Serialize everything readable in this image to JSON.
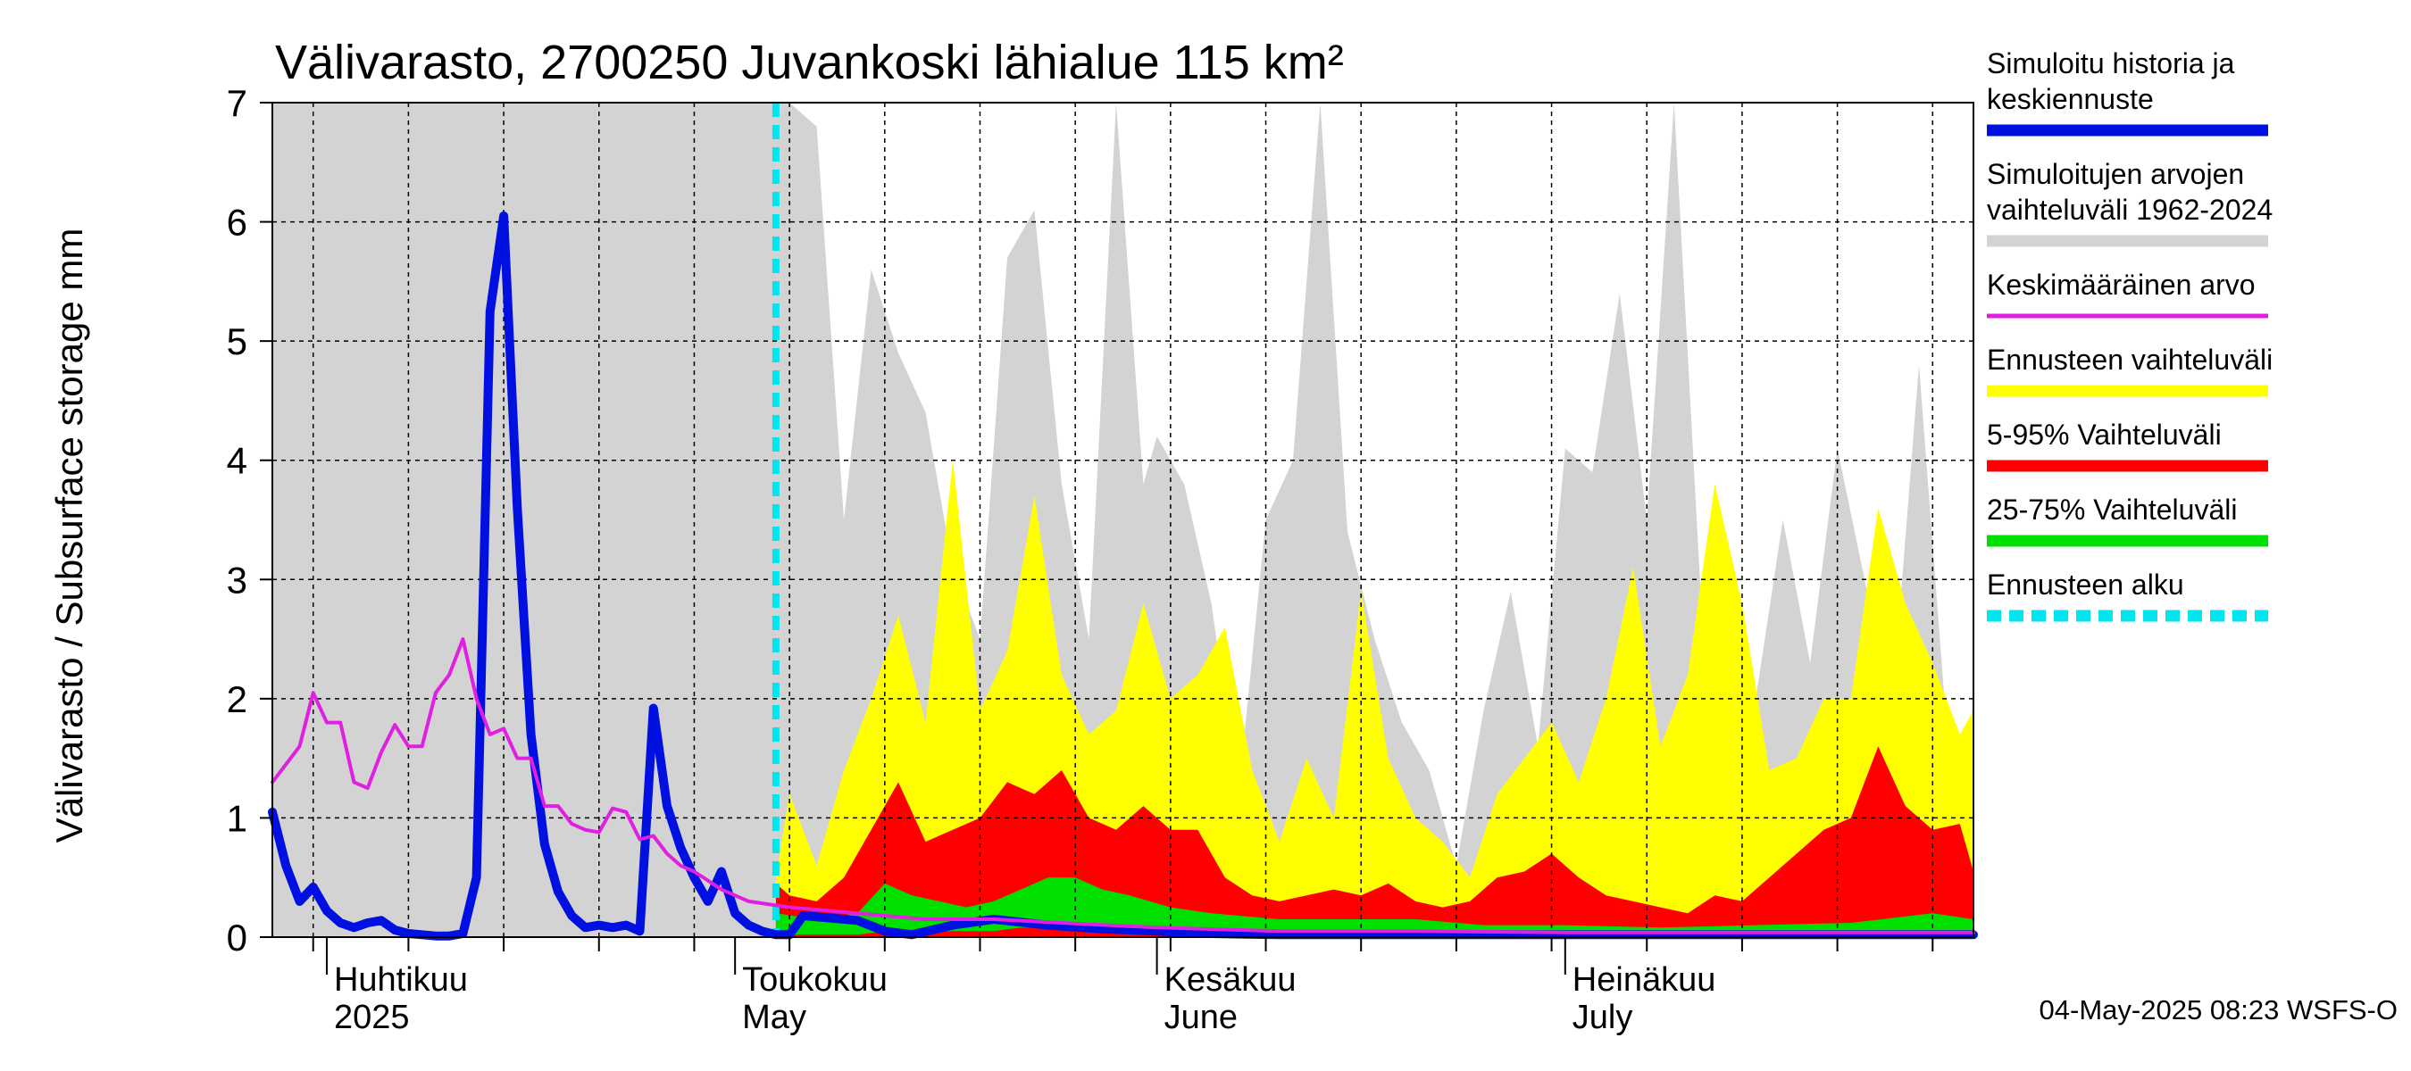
{
  "chart_data": {
    "type": "area",
    "title": "Välivarasto, 2700250 Juvankoski lähialue 115 km²",
    "ylabel": "Välivarasto / Subsurface storage  mm",
    "ylim": [
      0,
      7
    ],
    "yticks": [
      0,
      1,
      2,
      3,
      4,
      5,
      6,
      7
    ],
    "xlim": [
      "2025-03-28",
      "2025-07-31"
    ],
    "forecast_start": "2025-05-04",
    "months": [
      {
        "date": "2025-04-01",
        "fi": "Huhtikuu",
        "en": "2025"
      },
      {
        "date": "2025-05-01",
        "fi": "Toukokuu",
        "en": "May"
      },
      {
        "date": "2025-06-01",
        "fi": "Kesäkuu",
        "en": "June"
      },
      {
        "date": "2025-07-01",
        "fi": "Heinäkuu",
        "en": "July"
      }
    ],
    "grid": true,
    "legend_position": "right",
    "legend": [
      {
        "label": "Simuloitu historia ja keskiennuste",
        "color": "#0010e0",
        "style": "thick"
      },
      {
        "label": "Simuloitujen arvojen vaihteluväli 1962-2024",
        "color": "#d3d3d3",
        "style": "thick"
      },
      {
        "label": "Keskimääräinen arvo",
        "color": "#e020e0",
        "style": "thin"
      },
      {
        "label": "Ennusteen vaihteluväli",
        "color": "#ffff00",
        "style": "thick"
      },
      {
        "label": "5-95% Vaihteluväli",
        "color": "#ff0000",
        "style": "thick"
      },
      {
        "label": "25-75% Vaihteluväli",
        "color": "#00e000",
        "style": "thick"
      },
      {
        "label": "Ennusteen alku",
        "color": "#00e5ee",
        "style": "dashed"
      }
    ],
    "series": [
      {
        "name": "Simuloitu historia ja keskiennuste",
        "kind": "line",
        "color": "#0010e0",
        "x": [
          "2025-03-28",
          "2025-03-29",
          "2025-03-30",
          "2025-03-31",
          "2025-04-01",
          "2025-04-02",
          "2025-04-03",
          "2025-04-04",
          "2025-04-05",
          "2025-04-06",
          "2025-04-07",
          "2025-04-08",
          "2025-04-09",
          "2025-04-10",
          "2025-04-11",
          "2025-04-12",
          "2025-04-13",
          "2025-04-14",
          "2025-04-15",
          "2025-04-16",
          "2025-04-17",
          "2025-04-18",
          "2025-04-19",
          "2025-04-20",
          "2025-04-21",
          "2025-04-22",
          "2025-04-23",
          "2025-04-24",
          "2025-04-25",
          "2025-04-26",
          "2025-04-27",
          "2025-04-28",
          "2025-04-29",
          "2025-04-30",
          "2025-05-01",
          "2025-05-02",
          "2025-05-03",
          "2025-05-04",
          "2025-05-05",
          "2025-05-06",
          "2025-05-08",
          "2025-05-10",
          "2025-05-12",
          "2025-05-14",
          "2025-05-17",
          "2025-05-20",
          "2025-05-24",
          "2025-05-28",
          "2025-06-01",
          "2025-06-05",
          "2025-06-10",
          "2025-06-20",
          "2025-06-30",
          "2025-07-10",
          "2025-07-20",
          "2025-07-31"
        ],
        "y": [
          1.05,
          0.6,
          0.3,
          0.42,
          0.22,
          0.12,
          0.08,
          0.12,
          0.14,
          0.06,
          0.03,
          0.02,
          0.01,
          0.01,
          0.03,
          0.5,
          5.25,
          6.05,
          3.6,
          1.7,
          0.78,
          0.38,
          0.18,
          0.08,
          0.1,
          0.08,
          0.1,
          0.05,
          1.92,
          1.1,
          0.75,
          0.5,
          0.3,
          0.55,
          0.2,
          0.1,
          0.05,
          0.02,
          0.02,
          0.18,
          0.16,
          0.14,
          0.05,
          0.02,
          0.1,
          0.15,
          0.1,
          0.07,
          0.05,
          0.03,
          0.02,
          0.02,
          0.02,
          0.02,
          0.02,
          0.02
        ]
      },
      {
        "name": "Keskimääräinen arvo",
        "kind": "line",
        "color": "#e020e0",
        "x": [
          "2025-03-28",
          "2025-03-30",
          "2025-03-31",
          "2025-04-01",
          "2025-04-02",
          "2025-04-03",
          "2025-04-04",
          "2025-04-05",
          "2025-04-06",
          "2025-04-07",
          "2025-04-08",
          "2025-04-09",
          "2025-04-10",
          "2025-04-11",
          "2025-04-12",
          "2025-04-13",
          "2025-04-14",
          "2025-04-15",
          "2025-04-16",
          "2025-04-17",
          "2025-04-18",
          "2025-04-19",
          "2025-04-20",
          "2025-04-21",
          "2025-04-22",
          "2025-04-23",
          "2025-04-24",
          "2025-04-25",
          "2025-04-26",
          "2025-04-27",
          "2025-04-28",
          "2025-04-30",
          "2025-05-02",
          "2025-05-05",
          "2025-05-10",
          "2025-05-15",
          "2025-05-20",
          "2025-05-25",
          "2025-06-01",
          "2025-06-10",
          "2025-06-20",
          "2025-07-01",
          "2025-07-15",
          "2025-07-31"
        ],
        "y": [
          1.3,
          1.6,
          2.05,
          1.8,
          1.8,
          1.3,
          1.25,
          1.55,
          1.78,
          1.6,
          1.6,
          2.05,
          2.2,
          2.5,
          2.0,
          1.7,
          1.75,
          1.5,
          1.5,
          1.1,
          1.1,
          0.95,
          0.9,
          0.88,
          1.08,
          1.05,
          0.82,
          0.85,
          0.7,
          0.6,
          0.55,
          0.4,
          0.3,
          0.25,
          0.2,
          0.15,
          0.15,
          0.12,
          0.08,
          0.05,
          0.05,
          0.04,
          0.04,
          0.04
        ]
      },
      {
        "name": "Simuloitujen arvojen vaihteluväli 1962-2024",
        "kind": "band",
        "color": "#d3d3d3",
        "x": [
          "2025-03-28",
          "2025-05-02",
          "2025-05-05",
          "2025-05-07",
          "2025-05-09",
          "2025-05-11",
          "2025-05-13",
          "2025-05-15",
          "2025-05-17",
          "2025-05-19",
          "2025-05-21",
          "2025-05-23",
          "2025-05-25",
          "2025-05-27",
          "2025-05-29",
          "2025-05-31",
          "2025-06-01",
          "2025-06-03",
          "2025-06-05",
          "2025-06-07",
          "2025-06-09",
          "2025-06-11",
          "2025-06-13",
          "2025-06-15",
          "2025-06-17",
          "2025-06-19",
          "2025-06-21",
          "2025-06-23",
          "2025-06-25",
          "2025-06-27",
          "2025-06-29",
          "2025-07-01",
          "2025-07-03",
          "2025-07-05",
          "2025-07-07",
          "2025-07-09",
          "2025-07-11",
          "2025-07-13",
          "2025-07-15",
          "2025-07-17",
          "2025-07-19",
          "2025-07-21",
          "2025-07-23",
          "2025-07-25",
          "2025-07-27",
          "2025-07-29",
          "2025-07-31"
        ],
        "high": [
          7,
          7,
          7,
          6.8,
          3.5,
          5.6,
          4.9,
          4.4,
          3.1,
          2.5,
          5.7,
          6.1,
          3.8,
          2.5,
          7,
          3.8,
          4.2,
          3.8,
          2.8,
          1.2,
          3.5,
          4.0,
          7,
          3.4,
          2.5,
          1.8,
          1.4,
          0.6,
          1.9,
          2.9,
          1.6,
          4.1,
          3.9,
          5.4,
          3.5,
          7,
          2.8,
          2.1,
          2.0,
          3.5,
          2.3,
          4.1,
          3.0,
          1.9,
          4.8,
          1.8,
          1.5
        ],
        "low": [
          0,
          0,
          0,
          0,
          0,
          0,
          0,
          0,
          0,
          0,
          0,
          0,
          0,
          0,
          0,
          0,
          0,
          0,
          0,
          0,
          0,
          0,
          0,
          0,
          0,
          0,
          0,
          0,
          0,
          0,
          0,
          0,
          0,
          0,
          0,
          0,
          0,
          0,
          0,
          0,
          0,
          0,
          0,
          0,
          0,
          0,
          0
        ]
      },
      {
        "name": "Ennusteen vaihteluväli",
        "kind": "band",
        "color": "#ffff00",
        "x": [
          "2025-05-04",
          "2025-05-05",
          "2025-05-07",
          "2025-05-09",
          "2025-05-11",
          "2025-05-13",
          "2025-05-15",
          "2025-05-17",
          "2025-05-19",
          "2025-05-21",
          "2025-05-23",
          "2025-05-25",
          "2025-05-27",
          "2025-05-29",
          "2025-05-31",
          "2025-06-02",
          "2025-06-04",
          "2025-06-06",
          "2025-06-08",
          "2025-06-10",
          "2025-06-12",
          "2025-06-14",
          "2025-06-16",
          "2025-06-18",
          "2025-06-20",
          "2025-06-22",
          "2025-06-24",
          "2025-06-26",
          "2025-06-28",
          "2025-06-30",
          "2025-07-02",
          "2025-07-04",
          "2025-07-06",
          "2025-07-08",
          "2025-07-10",
          "2025-07-12",
          "2025-07-14",
          "2025-07-16",
          "2025-07-18",
          "2025-07-20",
          "2025-07-22",
          "2025-07-24",
          "2025-07-26",
          "2025-07-28",
          "2025-07-30",
          "2025-07-31"
        ],
        "high": [
          0.5,
          1.2,
          0.6,
          1.4,
          2.0,
          2.7,
          1.8,
          4.0,
          1.9,
          2.4,
          3.7,
          2.2,
          1.7,
          1.9,
          2.8,
          2.0,
          2.2,
          2.6,
          1.4,
          0.8,
          1.5,
          1.0,
          2.9,
          1.5,
          1.0,
          0.8,
          0.5,
          1.2,
          1.5,
          1.8,
          1.3,
          2.0,
          3.1,
          1.6,
          2.2,
          3.8,
          2.8,
          1.4,
          1.5,
          2.0,
          2.0,
          3.6,
          2.8,
          2.3,
          1.7,
          1.9
        ],
        "low": [
          0,
          0,
          0,
          0,
          0,
          0,
          0,
          0,
          0,
          0,
          0,
          0,
          0,
          0,
          0,
          0,
          0,
          0,
          0,
          0,
          0,
          0,
          0,
          0,
          0,
          0,
          0,
          0,
          0,
          0,
          0,
          0,
          0,
          0,
          0,
          0,
          0,
          0,
          0,
          0,
          0,
          0,
          0,
          0,
          0,
          0
        ]
      },
      {
        "name": "5-95% Vaihteluväli",
        "kind": "band",
        "color": "#ff0000",
        "x": [
          "2025-05-04",
          "2025-05-05",
          "2025-05-07",
          "2025-05-09",
          "2025-05-11",
          "2025-05-13",
          "2025-05-15",
          "2025-05-17",
          "2025-05-19",
          "2025-05-21",
          "2025-05-23",
          "2025-05-25",
          "2025-05-27",
          "2025-05-29",
          "2025-05-31",
          "2025-06-02",
          "2025-06-04",
          "2025-06-06",
          "2025-06-08",
          "2025-06-10",
          "2025-06-12",
          "2025-06-14",
          "2025-06-16",
          "2025-06-18",
          "2025-06-20",
          "2025-06-22",
          "2025-06-24",
          "2025-06-26",
          "2025-06-28",
          "2025-06-30",
          "2025-07-02",
          "2025-07-04",
          "2025-07-06",
          "2025-07-08",
          "2025-07-10",
          "2025-07-12",
          "2025-07-14",
          "2025-07-16",
          "2025-07-18",
          "2025-07-20",
          "2025-07-22",
          "2025-07-24",
          "2025-07-26",
          "2025-07-28",
          "2025-07-30",
          "2025-07-31"
        ],
        "high": [
          0.45,
          0.35,
          0.3,
          0.5,
          0.9,
          1.3,
          0.8,
          0.9,
          1.0,
          1.3,
          1.2,
          1.4,
          1.0,
          0.9,
          1.1,
          0.9,
          0.9,
          0.5,
          0.35,
          0.3,
          0.35,
          0.4,
          0.35,
          0.45,
          0.3,
          0.25,
          0.3,
          0.5,
          0.55,
          0.7,
          0.5,
          0.35,
          0.3,
          0.25,
          0.2,
          0.35,
          0.3,
          0.5,
          0.7,
          0.9,
          1.0,
          1.6,
          1.1,
          0.9,
          0.95,
          0.55
        ],
        "low": [
          0,
          0,
          0,
          0,
          0,
          0,
          0,
          0,
          0,
          0,
          0,
          0,
          0,
          0,
          0,
          0,
          0,
          0,
          0,
          0,
          0,
          0,
          0,
          0,
          0,
          0,
          0,
          0,
          0,
          0,
          0,
          0,
          0,
          0,
          0,
          0,
          0,
          0,
          0,
          0,
          0,
          0,
          0,
          0,
          0,
          0
        ]
      },
      {
        "name": "25-75% Vaihteluväli",
        "kind": "band",
        "color": "#00e000",
        "x": [
          "2025-05-04",
          "2025-05-07",
          "2025-05-10",
          "2025-05-12",
          "2025-05-14",
          "2025-05-16",
          "2025-05-18",
          "2025-05-20",
          "2025-05-22",
          "2025-05-24",
          "2025-05-26",
          "2025-05-28",
          "2025-05-30",
          "2025-06-02",
          "2025-06-05",
          "2025-06-10",
          "2025-06-15",
          "2025-06-20",
          "2025-06-25",
          "2025-07-01",
          "2025-07-08",
          "2025-07-15",
          "2025-07-22",
          "2025-07-28",
          "2025-07-31"
        ],
        "high": [
          0.2,
          0.15,
          0.2,
          0.45,
          0.35,
          0.3,
          0.25,
          0.3,
          0.4,
          0.5,
          0.5,
          0.4,
          0.35,
          0.25,
          0.2,
          0.15,
          0.15,
          0.15,
          0.1,
          0.1,
          0.08,
          0.1,
          0.12,
          0.2,
          0.15
        ],
        "low": [
          0.02,
          0.02,
          0.02,
          0.05,
          0.05,
          0.05,
          0.05,
          0.05,
          0.08,
          0.08,
          0.08,
          0.06,
          0.05,
          0.04,
          0.03,
          0.03,
          0.03,
          0.03,
          0.02,
          0.02,
          0.02,
          0.02,
          0.02,
          0.02,
          0.02
        ]
      }
    ],
    "footer": "04-May-2025 08:23 WSFS-O"
  }
}
